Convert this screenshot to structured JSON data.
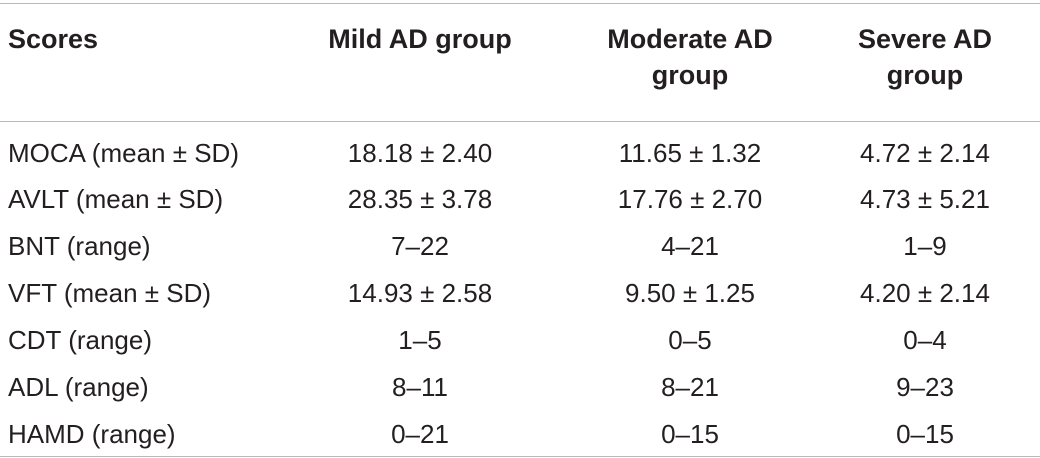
{
  "table": {
    "headers": [
      "Scores",
      "Mild AD group",
      "Moderate AD\ngroup",
      "Severe AD\ngroup"
    ],
    "rows": [
      [
        "MOCA (mean ± SD)",
        "18.18 ± 2.40",
        "11.65 ± 1.32",
        "4.72 ± 2.14"
      ],
      [
        "AVLT (mean ± SD)",
        "28.35 ± 3.78",
        "17.76 ± 2.70",
        "4.73 ± 5.21"
      ],
      [
        "BNT (range)",
        "7–22",
        "4–21",
        "1–9"
      ],
      [
        "VFT (mean ± SD)",
        "14.93 ± 2.58",
        "9.50 ± 1.25",
        "4.20 ± 2.14"
      ],
      [
        "CDT (range)",
        "1–5",
        "0–5",
        "0–4"
      ],
      [
        "ADL (range)",
        "8–11",
        "8–21",
        "9–23"
      ],
      [
        "HAMD (range)",
        "0–21",
        "0–15",
        "0–15"
      ]
    ]
  }
}
